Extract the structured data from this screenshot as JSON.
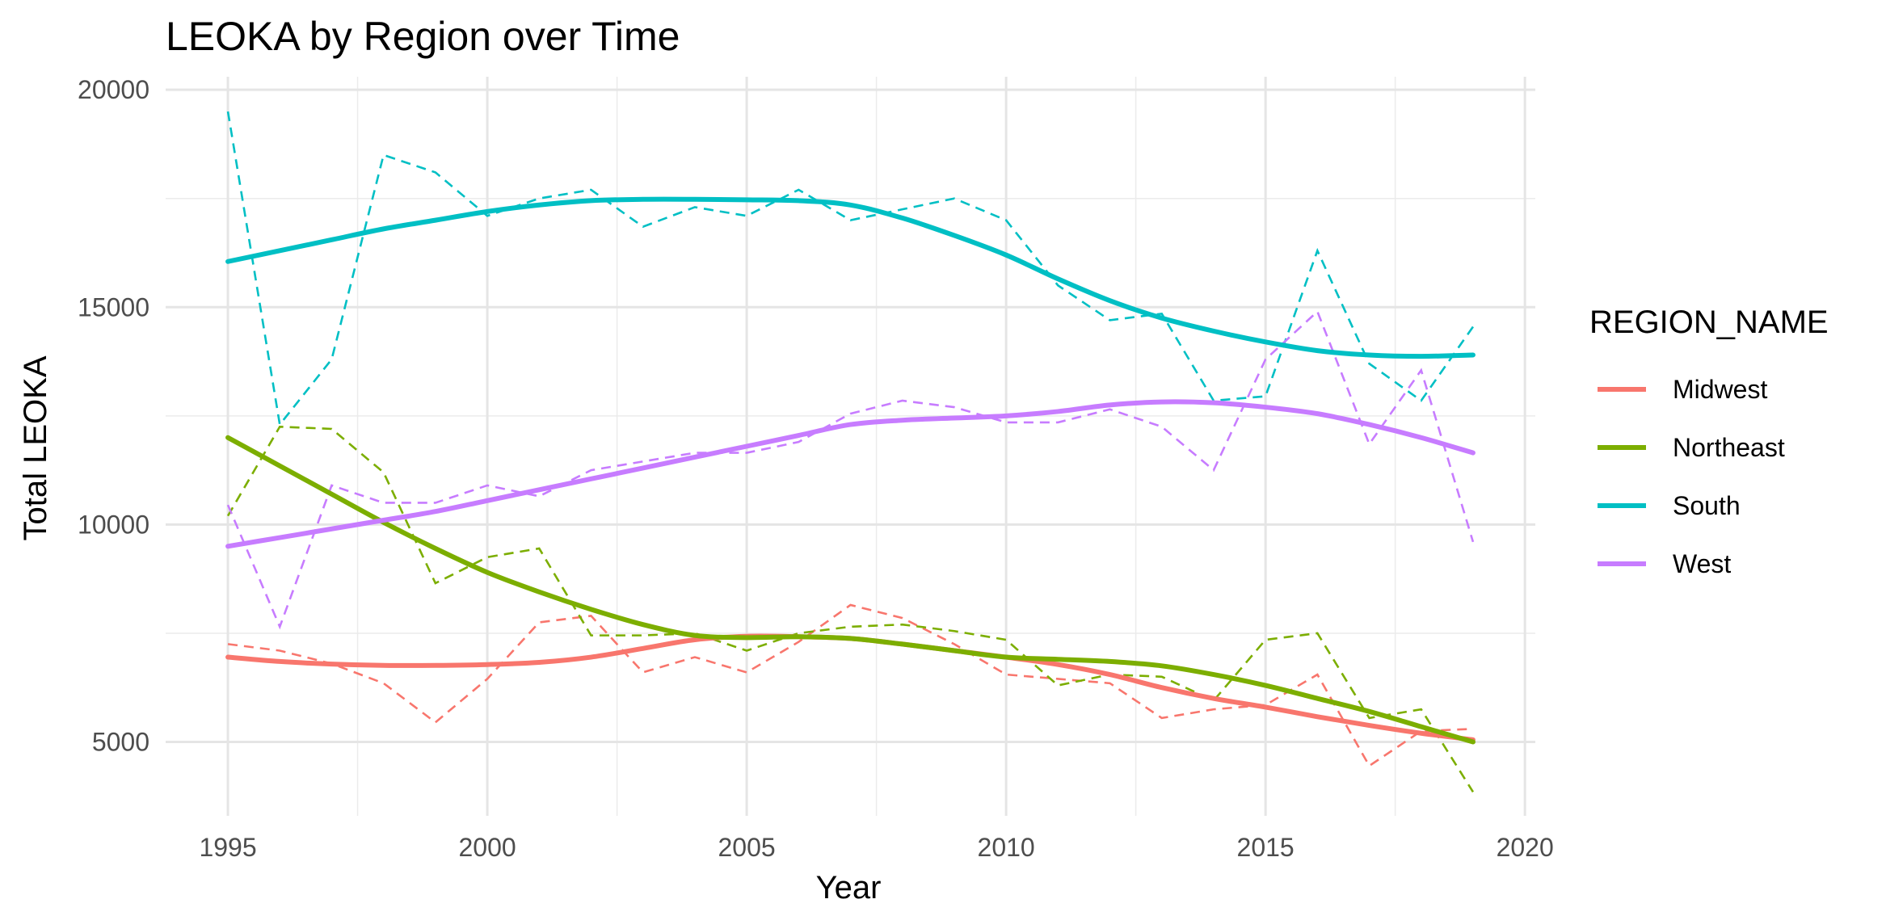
{
  "chart_data": {
    "type": "line",
    "title": "LEOKA by Region over Time",
    "xlabel": "Year",
    "ylabel": "Total LEOKA",
    "xlim": [
      1993.8,
      2020.2
    ],
    "ylim": [
      3300,
      20300
    ],
    "x_ticks": [
      1995,
      2000,
      2005,
      2010,
      2015,
      2020
    ],
    "y_ticks": [
      5000,
      10000,
      15000,
      20000
    ],
    "x_tick_labels": [
      "1995",
      "2000",
      "2005",
      "2010",
      "2015",
      "2020"
    ],
    "y_tick_labels": [
      "5000",
      "10000",
      "15000",
      "20000"
    ],
    "grid": true,
    "legend": {
      "title": "REGION_NAME",
      "placement": "right"
    },
    "x": [
      1995,
      1996,
      1997,
      1998,
      1999,
      2000,
      2001,
      2002,
      2003,
      2004,
      2005,
      2006,
      2007,
      2008,
      2009,
      2010,
      2011,
      2012,
      2013,
      2014,
      2015,
      2016,
      2017,
      2018,
      2019
    ],
    "series": [
      {
        "name": "Midwest",
        "color": "#F8766D",
        "values": [
          7250,
          7100,
          6800,
          6350,
          5450,
          6450,
          7750,
          7900,
          6600,
          6950,
          6600,
          7300,
          8150,
          7850,
          7250,
          6550,
          6450,
          6350,
          5550,
          5750,
          5850,
          6550,
          4450,
          5250,
          5300
        ],
        "smooth": [
          6950,
          6850,
          6790,
          6760,
          6760,
          6780,
          6830,
          6950,
          7150,
          7350,
          7430,
          7420,
          7380,
          7250,
          7100,
          6950,
          6780,
          6550,
          6250,
          6000,
          5800,
          5580,
          5380,
          5200,
          5050
        ]
      },
      {
        "name": "Northeast",
        "color": "#7CAE00",
        "values": [
          10200,
          12250,
          12200,
          11200,
          8650,
          9250,
          9450,
          7450,
          7450,
          7500,
          7100,
          7500,
          7650,
          7700,
          7550,
          7350,
          6300,
          6550,
          6500,
          5950,
          7350,
          7500,
          5550,
          5750,
          3850
        ],
        "smooth": [
          12000,
          11350,
          10700,
          10050,
          9450,
          8900,
          8450,
          8050,
          7700,
          7450,
          7400,
          7420,
          7380,
          7250,
          7100,
          6950,
          6900,
          6850,
          6750,
          6550,
          6300,
          6000,
          5700,
          5350,
          5000
        ]
      },
      {
        "name": "South",
        "color": "#00BFC4",
        "values": [
          19500,
          12300,
          13800,
          18500,
          18100,
          17100,
          17500,
          17700,
          16850,
          17300,
          17100,
          17700,
          17000,
          17250,
          17500,
          17000,
          15500,
          14700,
          14850,
          12850,
          12950,
          16300,
          13700,
          12850,
          14550
        ],
        "smooth": [
          16050,
          16300,
          16550,
          16800,
          17000,
          17200,
          17350,
          17450,
          17480,
          17480,
          17470,
          17450,
          17350,
          17050,
          16650,
          16200,
          15650,
          15150,
          14750,
          14450,
          14200,
          14000,
          13900,
          13870,
          13900
        ]
      },
      {
        "name": "West",
        "color": "#C77CFF",
        "values": [
          10450,
          7650,
          10900,
          10500,
          10500,
          10900,
          10650,
          11250,
          11450,
          11650,
          11650,
          11900,
          12550,
          12850,
          12700,
          12350,
          12350,
          12650,
          12250,
          11250,
          13800,
          14900,
          11850,
          13550,
          9600
        ],
        "smooth": [
          9500,
          9700,
          9900,
          10100,
          10300,
          10550,
          10800,
          11050,
          11300,
          11550,
          11800,
          12050,
          12300,
          12400,
          12450,
          12500,
          12600,
          12750,
          12820,
          12800,
          12700,
          12550,
          12300,
          12000,
          11650
        ]
      }
    ]
  }
}
